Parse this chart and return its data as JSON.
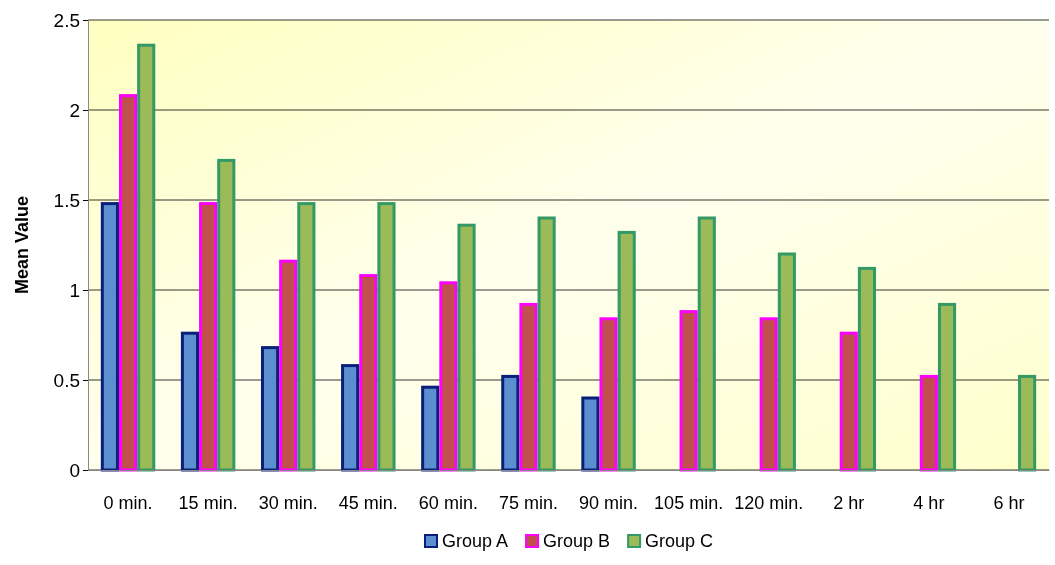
{
  "chart_data": {
    "type": "bar",
    "ylabel": "Mean Value",
    "categories": [
      "0 min.",
      "15 min.",
      "30 min.",
      "45 min.",
      "60 min.",
      "75 min.",
      "90 min.",
      "105 min.",
      "120 min.",
      "2 hr",
      "4 hr",
      "6 hr"
    ],
    "series": [
      {
        "name": "Group A",
        "color": "#5b8fd0",
        "values": [
          1.48,
          0.76,
          0.68,
          0.58,
          0.46,
          0.52,
          0.4,
          null,
          null,
          null,
          null,
          null
        ]
      },
      {
        "name": "Group B",
        "color": "#c0504d",
        "values": [
          2.08,
          1.48,
          1.16,
          1.08,
          1.04,
          0.92,
          0.84,
          0.88,
          0.84,
          0.76,
          0.52,
          null
        ]
      },
      {
        "name": "Group C",
        "color": "#9bbb59",
        "values": [
          2.36,
          1.72,
          1.48,
          1.48,
          1.36,
          1.4,
          1.32,
          1.4,
          1.2,
          1.12,
          0.92,
          0.52
        ]
      }
    ],
    "ylim": [
      0,
      2.5
    ],
    "yticks": [
      0,
      0.5,
      1,
      1.5,
      2,
      2.5
    ],
    "grid": "y",
    "legend": "bottom"
  }
}
